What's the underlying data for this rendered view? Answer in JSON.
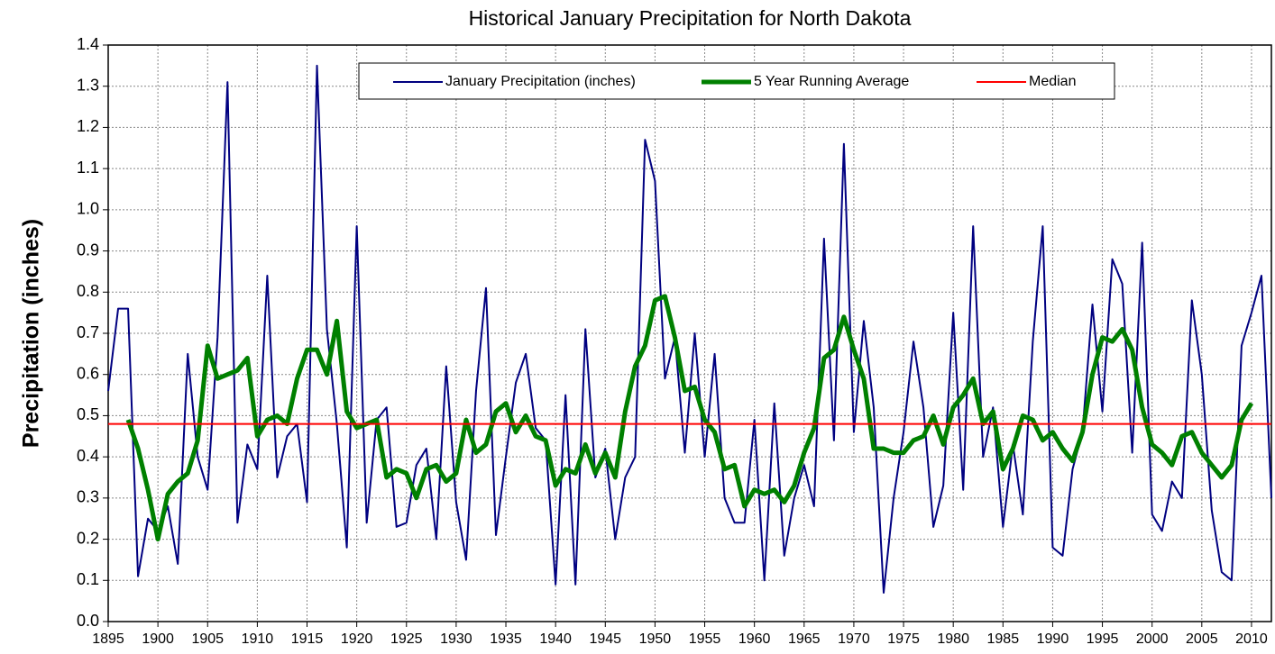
{
  "chart_data": {
    "type": "line",
    "title": "Historical January Precipitation for North Dakota",
    "y_label": "Precipitation (inches)",
    "x": [
      1895,
      1896,
      1897,
      1898,
      1899,
      1900,
      1901,
      1902,
      1903,
      1904,
      1905,
      1906,
      1907,
      1908,
      1909,
      1910,
      1911,
      1912,
      1913,
      1914,
      1915,
      1916,
      1917,
      1918,
      1919,
      1920,
      1921,
      1922,
      1923,
      1924,
      1925,
      1926,
      1927,
      1928,
      1929,
      1930,
      1931,
      1932,
      1933,
      1934,
      1935,
      1936,
      1937,
      1938,
      1939,
      1940,
      1941,
      1942,
      1943,
      1944,
      1945,
      1946,
      1947,
      1948,
      1949,
      1950,
      1951,
      1952,
      1953,
      1954,
      1955,
      1956,
      1957,
      1958,
      1959,
      1960,
      1961,
      1962,
      1963,
      1964,
      1965,
      1966,
      1967,
      1968,
      1969,
      1970,
      1971,
      1972,
      1973,
      1974,
      1975,
      1976,
      1977,
      1978,
      1979,
      1980,
      1981,
      1982,
      1983,
      1984,
      1985,
      1986,
      1987,
      1988,
      1989,
      1990,
      1991,
      1992,
      1993,
      1994,
      1995,
      1996,
      1997,
      1998,
      1999,
      2000,
      2001,
      2002,
      2003,
      2004,
      2005,
      2006,
      2007,
      2008,
      2009,
      2010,
      2011,
      2012
    ],
    "series": [
      {
        "name": "January Precipitation (inches)",
        "color": "#000080",
        "width": 2,
        "values": [
          0.56,
          0.76,
          0.76,
          0.11,
          0.25,
          0.22,
          0.28,
          0.14,
          0.65,
          0.4,
          0.32,
          0.69,
          1.31,
          0.24,
          0.43,
          0.37,
          0.84,
          0.35,
          0.45,
          0.48,
          0.29,
          1.35,
          0.71,
          0.48,
          0.18,
          0.96,
          0.24,
          0.49,
          0.52,
          0.23,
          0.24,
          0.38,
          0.42,
          0.2,
          0.62,
          0.29,
          0.15,
          0.56,
          0.81,
          0.21,
          0.4,
          0.58,
          0.65,
          0.47,
          0.44,
          0.09,
          0.55,
          0.09,
          0.71,
          0.35,
          0.42,
          0.2,
          0.35,
          0.4,
          1.17,
          1.07,
          0.59,
          0.69,
          0.41,
          0.7,
          0.4,
          0.65,
          0.3,
          0.24,
          0.24,
          0.49,
          0.1,
          0.53,
          0.16,
          0.3,
          0.38,
          0.28,
          0.93,
          0.44,
          1.16,
          0.46,
          0.73,
          0.52,
          0.07,
          0.3,
          0.46,
          0.68,
          0.52,
          0.23,
          0.33,
          0.75,
          0.32,
          0.96,
          0.4,
          0.52,
          0.23,
          0.43,
          0.26,
          0.68,
          0.96,
          0.18,
          0.16,
          0.37,
          0.46,
          0.77,
          0.51,
          0.88,
          0.82,
          0.41,
          0.92,
          0.26,
          0.22,
          0.34,
          0.3,
          0.78,
          0.6,
          0.27,
          0.12,
          0.1,
          0.67,
          0.75,
          0.84,
          0.3
        ]
      },
      {
        "name": "5 Year Running Average",
        "color": "#008000",
        "width": 5,
        "values": [
          null,
          null,
          0.49,
          0.42,
          0.32,
          0.2,
          0.31,
          0.34,
          0.36,
          0.44,
          0.67,
          0.59,
          0.6,
          0.61,
          0.64,
          0.45,
          0.49,
          0.5,
          0.48,
          0.59,
          0.66,
          0.66,
          0.6,
          0.73,
          0.51,
          0.47,
          0.48,
          0.49,
          0.35,
          0.37,
          0.36,
          0.3,
          0.37,
          0.38,
          0.34,
          0.36,
          0.49,
          0.41,
          0.43,
          0.51,
          0.53,
          0.46,
          0.5,
          0.45,
          0.44,
          0.33,
          0.37,
          0.36,
          0.43,
          0.36,
          0.41,
          0.35,
          0.51,
          0.62,
          0.67,
          0.78,
          0.79,
          0.69,
          0.56,
          0.57,
          0.49,
          0.46,
          0.37,
          0.38,
          0.28,
          0.32,
          0.31,
          0.32,
          0.29,
          0.33,
          0.41,
          0.47,
          0.64,
          0.66,
          0.74,
          0.66,
          0.59,
          0.42,
          0.42,
          0.41,
          0.41,
          0.44,
          0.45,
          0.5,
          0.43,
          0.52,
          0.55,
          0.59,
          0.48,
          0.51,
          0.37,
          0.42,
          0.5,
          0.49,
          0.44,
          0.46,
          0.42,
          0.39,
          0.46,
          0.6,
          0.69,
          0.68,
          0.71,
          0.66,
          0.52,
          0.43,
          0.41,
          0.38,
          0.45,
          0.46,
          0.41,
          0.38,
          0.35,
          0.38,
          0.49,
          0.53,
          null,
          null
        ]
      }
    ],
    "median": {
      "name": "Median",
      "color": "#ff0000",
      "value": 0.48
    },
    "xlim": [
      1895,
      2012
    ],
    "xticks": [
      1895,
      1900,
      1905,
      1910,
      1915,
      1920,
      1925,
      1930,
      1935,
      1940,
      1945,
      1950,
      1955,
      1960,
      1965,
      1970,
      1975,
      1980,
      1985,
      1990,
      1995,
      2000,
      2005,
      2010
    ],
    "ylim": [
      0,
      1.4
    ],
    "yticks": [
      {
        "value": 0,
        "label": "0.0"
      },
      0.1,
      0.2,
      0.3,
      0.4,
      0.5,
      0.6,
      0.7,
      0.8,
      0.9,
      {
        "value": 1,
        "label": "1.0"
      },
      1.1,
      1.2,
      1.3,
      1.4
    ],
    "grid": true
  }
}
